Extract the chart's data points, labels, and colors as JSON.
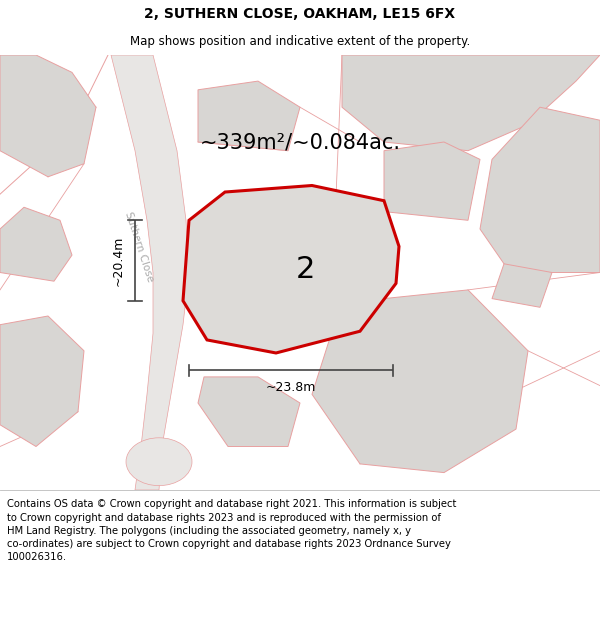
{
  "title": "2, SUTHERN CLOSE, OAKHAM, LE15 6FX",
  "subtitle": "Map shows position and indicative extent of the property.",
  "footer": "Contains OS data © Crown copyright and database right 2021. This information is subject\nto Crown copyright and database rights 2023 and is reproduced with the permission of\nHM Land Registry. The polygons (including the associated geometry, namely x, y\nco-ordinates) are subject to Crown copyright and database rights 2023 Ordnance Survey\n100026316.",
  "area_text": "~339m²/~0.084ac.",
  "label_number": "2",
  "dim_vertical": "~20.4m",
  "dim_horizontal": "~23.8m",
  "street_label": "Suthern Close",
  "map_bg": "#eeecec",
  "plot_fill": "#dddbd8",
  "plot_outline": "#cc0000",
  "gray_fill": "#d8d6d3",
  "pink_line_color": "#e8a0a0",
  "dark_line_color": "#444444",
  "title_fontsize": 10,
  "subtitle_fontsize": 8.5,
  "footer_fontsize": 7.2,
  "area_fontsize": 15,
  "label_fontsize": 22,
  "dim_fontsize": 9,
  "street_fontsize": 7.5
}
